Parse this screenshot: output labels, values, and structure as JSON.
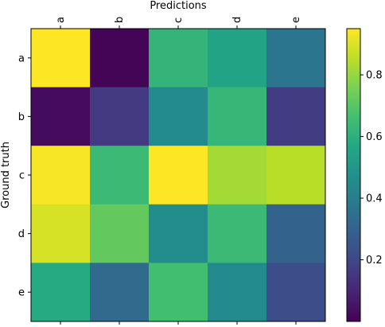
{
  "chart_data": {
    "type": "heatmap",
    "title": "",
    "xlabel": "Predictions",
    "ylabel": "Ground truth",
    "x_categories": [
      "a",
      "b",
      "c",
      "d",
      "e"
    ],
    "y_categories": [
      "a",
      "b",
      "c",
      "d",
      "e"
    ],
    "x_ticks_position": "top",
    "matrix": [
      [
        0.95,
        0.01,
        0.62,
        0.55,
        0.37
      ],
      [
        0.03,
        0.16,
        0.45,
        0.63,
        0.17
      ],
      [
        0.94,
        0.64,
        0.98,
        0.82,
        0.85
      ],
      [
        0.89,
        0.72,
        0.46,
        0.64,
        0.3
      ],
      [
        0.58,
        0.33,
        0.66,
        0.45,
        0.22
      ]
    ],
    "colormap": "viridis",
    "color_range": [
      0.0,
      0.95
    ],
    "colorbar": {
      "ticks": [
        0.2,
        0.4,
        0.6,
        0.8
      ],
      "tick_labels": [
        "0.2",
        "0.4",
        "0.6",
        "0.8"
      ],
      "placement": "right"
    },
    "grid": false
  }
}
